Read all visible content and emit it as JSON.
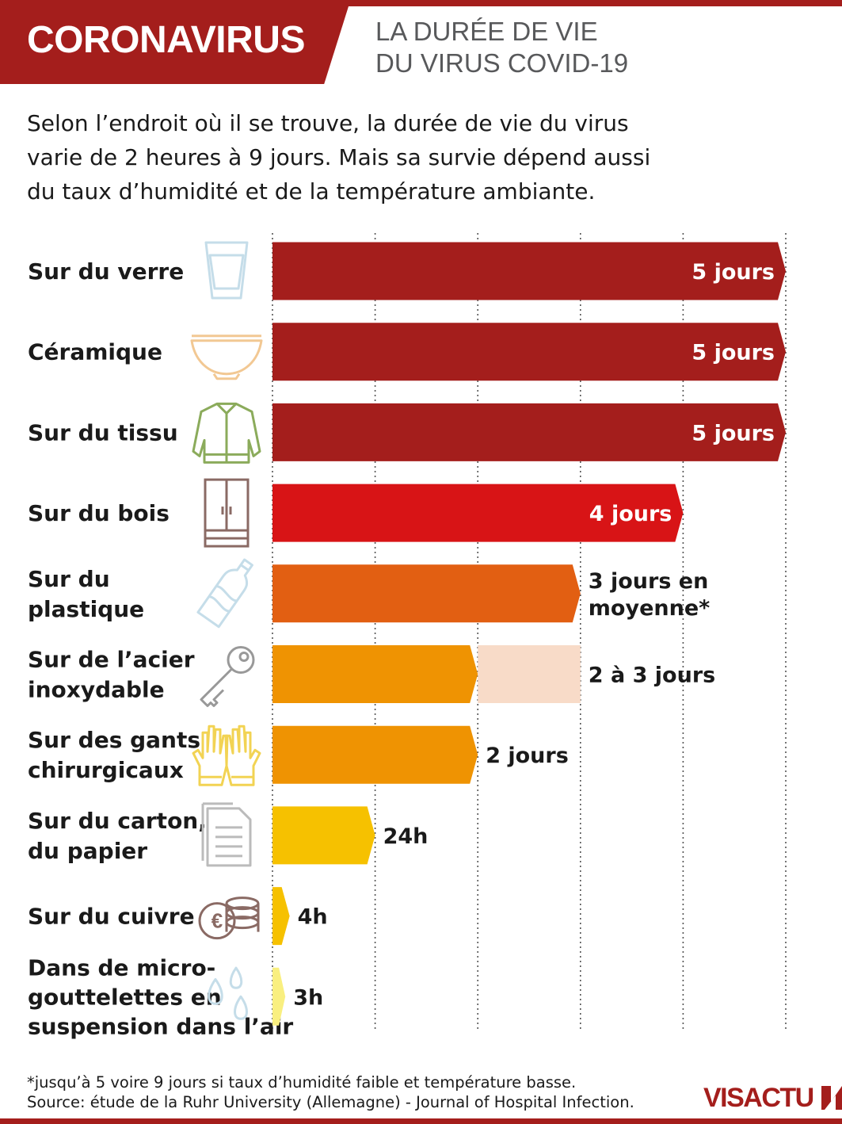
{
  "header": {
    "banner": "CORONAVIRUS",
    "subtitle_lines": [
      "LA DURÉE DE VIE",
      "DU VIRUS COVID-19"
    ]
  },
  "intro_lines": [
    "Selon l’endroit où il se trouve, la durée de vie du virus",
    "varie de 2 heures à 9 jours. Mais sa survie dépend aussi",
    "du taux d’humidité et de la température ambiante."
  ],
  "colors": {
    "brand": "#a41e1c",
    "dark_red": "#a41e1c",
    "red": "#d81416",
    "orange": "#e25f12",
    "amber": "#ef9302",
    "amber_light": "#f8dbc8",
    "yellow": "#f6c100",
    "light_yellow": "#f9ef80"
  },
  "chart_data": {
    "type": "bar",
    "orientation": "horizontal",
    "xlim": [
      0,
      5
    ],
    "grid": true,
    "categories": [
      "Sur du verre",
      "Céramique",
      "Sur du tissu",
      "Sur du bois",
      "Sur du plastique",
      "Sur de l’acier inoxydable",
      "Sur des gants chirurgicaux",
      "Sur du carton, du papier",
      "Sur du cuivre",
      "Dans de micro-gouttelettes en suspension dans l’air"
    ],
    "items": [
      {
        "label_lines": [
          "Sur du verre"
        ],
        "icon": "glass-icon",
        "value": 5,
        "unit": "days",
        "value_label": [
          "5 jours"
        ],
        "label_inside": true,
        "color": "#a41e1c"
      },
      {
        "label_lines": [
          "Céramique"
        ],
        "icon": "bowl-icon",
        "value": 5,
        "unit": "days",
        "value_label": [
          "5 jours"
        ],
        "label_inside": true,
        "color": "#a41e1c"
      },
      {
        "label_lines": [
          "Sur du tissu"
        ],
        "icon": "jacket-icon",
        "value": 5,
        "unit": "days",
        "value_label": [
          "5 jours"
        ],
        "label_inside": true,
        "color": "#a41e1c"
      },
      {
        "label_lines": [
          "Sur du bois"
        ],
        "icon": "wardrobe-icon",
        "value": 4,
        "unit": "days",
        "value_label": [
          "4 jours"
        ],
        "label_inside": true,
        "color": "#d81416"
      },
      {
        "label_lines": [
          "Sur du",
          "plastique"
        ],
        "icon": "bottle-icon",
        "value": 3,
        "unit": "days",
        "value_label": [
          "3 jours en",
          "moyenne*"
        ],
        "label_inside": false,
        "color": "#e25f12"
      },
      {
        "label_lines": [
          "Sur de l’acier",
          "inoxydable"
        ],
        "icon": "key-icon",
        "value": 2,
        "value_max": 3,
        "unit": "days",
        "value_label": [
          "2 à 3 jours"
        ],
        "label_inside": false,
        "color": "#ef9302",
        "range_color": "#f8dbc8"
      },
      {
        "label_lines": [
          "Sur des gants",
          "chirurgicaux"
        ],
        "icon": "gloves-icon",
        "value": 2,
        "unit": "days",
        "value_label": [
          "2  jours"
        ],
        "label_inside": false,
        "color": "#ef9302"
      },
      {
        "label_lines": [
          "Sur du carton,",
          "du papier"
        ],
        "icon": "paper-icon",
        "value": 1,
        "unit": "days",
        "value_label": [
          "24h"
        ],
        "label_inside": false,
        "color": "#f6c100"
      },
      {
        "label_lines": [
          "Sur du cuivre"
        ],
        "icon": "coins-icon",
        "value": 0.167,
        "unit": "days",
        "value_label": [
          "4h"
        ],
        "label_inside": false,
        "color": "#f6c100"
      },
      {
        "label_lines": [
          "Dans de micro-",
          "gouttelettes en",
          "suspension dans l’air"
        ],
        "icon": "droplets-icon",
        "value": 0.125,
        "unit": "days",
        "value_label": [
          "3h"
        ],
        "label_inside": false,
        "color": "#f9ef80"
      }
    ]
  },
  "footnote_lines": [
    "*jusqu’à 5 voire 9 jours si taux d’humidité faible et température basse.",
    "Source: étude  de la Ruhr University (Allemagne) - Journal of Hospital Infection."
  ],
  "logo": {
    "text": "VISACTU",
    "icon": "visactu-logo-icon"
  }
}
